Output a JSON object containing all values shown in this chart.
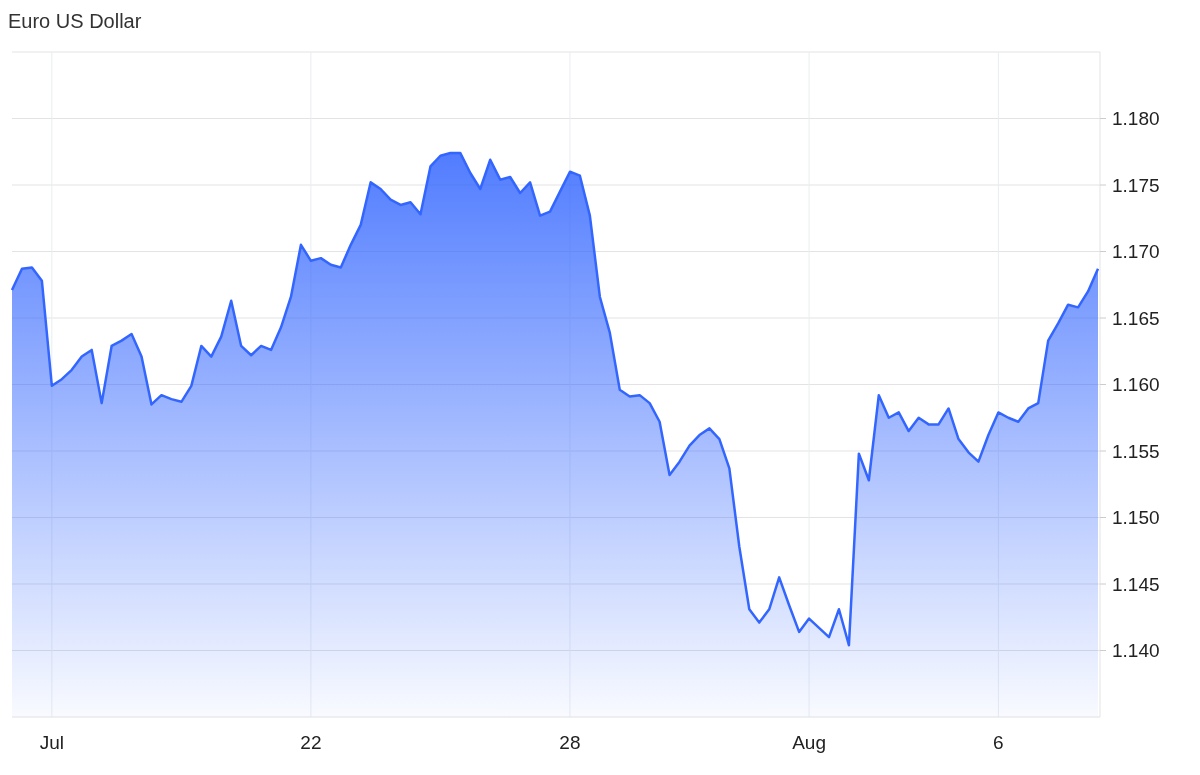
{
  "chart_data": {
    "type": "area",
    "title": "Euro US Dollar",
    "categories": [
      null,
      null,
      null,
      null,
      "Jul",
      null,
      null,
      null,
      null,
      null,
      null,
      null,
      null,
      null,
      null,
      null,
      null,
      null,
      null,
      null,
      null,
      null,
      null,
      null,
      null,
      null,
      null,
      null,
      null,
      null,
      "22",
      null,
      null,
      null,
      null,
      null,
      null,
      null,
      null,
      null,
      null,
      null,
      null,
      null,
      null,
      null,
      null,
      null,
      null,
      null,
      null,
      null,
      null,
      null,
      null,
      null,
      "28",
      null,
      null,
      null,
      null,
      null,
      null,
      null,
      null,
      null,
      null,
      null,
      null,
      null,
      null,
      null,
      null,
      null,
      null,
      null,
      null,
      null,
      null,
      null,
      "Aug",
      null,
      null,
      null,
      null,
      null,
      null,
      null,
      null,
      null,
      null,
      null,
      null,
      null,
      null,
      null,
      null,
      null,
      null,
      "6",
      null,
      null,
      null,
      null,
      null,
      null,
      null,
      null,
      null,
      null
    ],
    "series": [
      {
        "color": "#3366ff",
        "values": [
          1.1671,
          1.1687,
          1.1688,
          1.1678,
          1.1599,
          1.1604,
          1.1611,
          1.1621,
          1.1626,
          1.1586,
          1.1629,
          1.1633,
          1.1638,
          1.1621,
          1.1585,
          1.1592,
          1.1589,
          1.1587,
          1.1599,
          1.1629,
          1.1621,
          1.1636,
          1.1663,
          1.1629,
          1.1622,
          1.1629,
          1.1626,
          1.1643,
          1.1666,
          1.1705,
          1.1693,
          1.1695,
          1.169,
          1.1688,
          1.1705,
          1.172,
          1.1752,
          1.1747,
          1.1739,
          1.1735,
          1.1737,
          1.1728,
          1.1764,
          1.1772,
          1.1774,
          1.1774,
          1.1759,
          1.1747,
          1.1769,
          1.1754,
          1.1756,
          1.1744,
          1.1752,
          1.1727,
          1.173,
          1.1745,
          1.176,
          1.1757,
          1.1727,
          1.1666,
          1.1639,
          1.1596,
          1.1591,
          1.1592,
          1.1586,
          1.1572,
          1.1532,
          1.1542,
          1.1554,
          1.1562,
          1.1567,
          1.1559,
          1.1537,
          1.1478,
          1.1431,
          1.1421,
          1.1431,
          1.1455,
          1.1434,
          1.1414,
          1.1424,
          1.1417,
          1.141,
          1.1431,
          1.1404,
          1.1548,
          1.1528,
          1.1592,
          1.1575,
          1.1579,
          1.1565,
          1.1575,
          1.157,
          1.157,
          1.1582,
          1.1559,
          1.1549,
          1.1542,
          1.1562,
          1.1579,
          1.1575,
          1.1572,
          1.1582,
          1.1586,
          1.1633,
          1.1646,
          1.166,
          1.1658,
          1.167,
          1.1687
        ]
      }
    ],
    "ylim": [
      1.135,
      1.185
    ],
    "yticks": [
      {
        "value": 1.14,
        "label": "1.140"
      },
      {
        "value": 1.145,
        "label": "1.145"
      },
      {
        "value": 1.15,
        "label": "1.150"
      },
      {
        "value": 1.155,
        "label": "1.155"
      },
      {
        "value": 1.16,
        "label": "1.160"
      },
      {
        "value": 1.165,
        "label": "1.165"
      },
      {
        "value": 1.17,
        "label": "1.170"
      },
      {
        "value": 1.175,
        "label": "1.175"
      },
      {
        "value": 1.18,
        "label": "1.180"
      }
    ],
    "grid": true
  }
}
